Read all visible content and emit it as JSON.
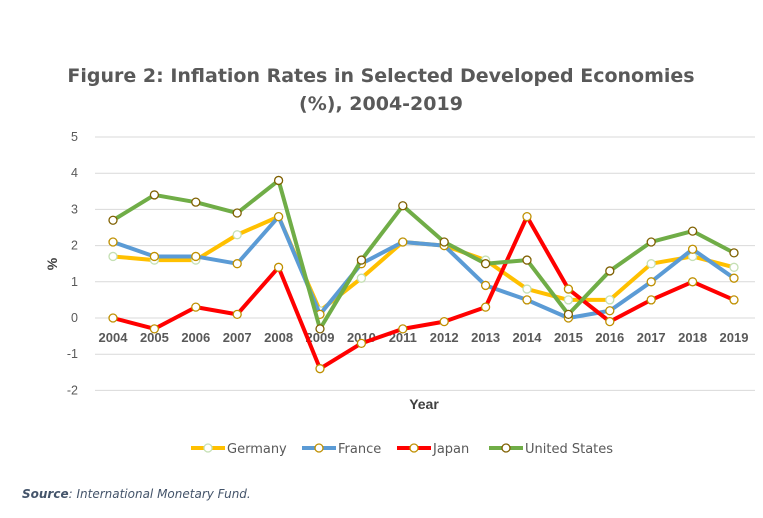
{
  "chart_data": {
    "type": "line",
    "title_lines": [
      "Figure 2: Inflation Rates in Selected Developed Economies",
      "(%), 2004-2019"
    ],
    "xlabel": "Year",
    "ylabel": "%",
    "ylim": [
      -2,
      5
    ],
    "yticks": [
      5,
      4,
      3,
      2,
      1,
      0,
      -1,
      -2
    ],
    "grid": true,
    "legend_position": "bottom",
    "categories": [
      "2004",
      "2005",
      "2006",
      "2007",
      "2008",
      "2009",
      "2010",
      "2011",
      "2012",
      "2013",
      "2014",
      "2015",
      "2016",
      "2017",
      "2018",
      "2019"
    ],
    "series": [
      {
        "name": "Germany",
        "color": "#ffc000",
        "marker_edge": "#c5e0b4",
        "values": [
          1.7,
          1.6,
          1.6,
          2.3,
          2.8,
          0.2,
          1.1,
          2.1,
          2.0,
          1.6,
          0.8,
          0.5,
          0.5,
          1.5,
          1.7,
          1.4
        ]
      },
      {
        "name": "France",
        "color": "#5b9bd5",
        "marker_edge": "#bf9000",
        "values": [
          2.1,
          1.7,
          1.7,
          1.5,
          2.8,
          0.1,
          1.5,
          2.1,
          2.0,
          0.9,
          0.5,
          0.0,
          0.2,
          1.0,
          1.9,
          1.1
        ]
      },
      {
        "name": "Japan",
        "color": "#ff0000",
        "marker_edge": "#bf9000",
        "values": [
          0.0,
          -0.3,
          0.3,
          0.1,
          1.4,
          -1.4,
          -0.7,
          -0.3,
          -0.1,
          0.3,
          2.8,
          0.8,
          -0.1,
          0.5,
          1.0,
          0.5
        ]
      },
      {
        "name": "United States",
        "color": "#70ad47",
        "marker_edge": "#7f6000",
        "values": [
          2.7,
          3.4,
          3.2,
          2.9,
          3.8,
          -0.3,
          1.6,
          3.1,
          2.1,
          1.5,
          1.6,
          0.1,
          1.3,
          2.1,
          2.4,
          1.8
        ]
      }
    ]
  },
  "source": {
    "label": "Source",
    "text": ": International Monetary Fund."
  }
}
